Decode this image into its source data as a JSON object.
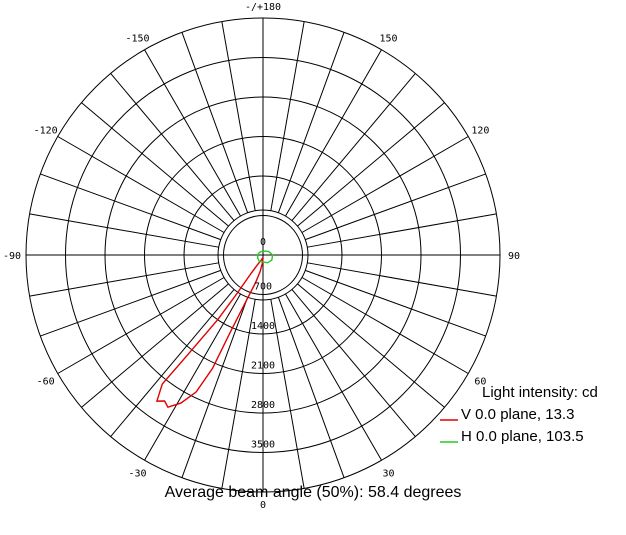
{
  "chart_data": {
    "type": "polar",
    "title": "",
    "angle_labels": [
      {
        "angle": 180,
        "label": "-/+180"
      },
      {
        "angle": -150,
        "label": "-150"
      },
      {
        "angle": 150,
        "label": "150"
      },
      {
        "angle": -120,
        "label": "-120"
      },
      {
        "angle": 120,
        "label": "120"
      },
      {
        "angle": -90,
        "label": "-90"
      },
      {
        "angle": 90,
        "label": "90"
      },
      {
        "angle": -60,
        "label": "-60"
      },
      {
        "angle": 60,
        "label": "60"
      },
      {
        "angle": -30,
        "label": "-30"
      },
      {
        "angle": 30,
        "label": "30"
      },
      {
        "angle": 0,
        "label": "0"
      }
    ],
    "radial_ticks": [
      {
        "value": 0,
        "label": "0"
      },
      {
        "value": 700,
        "label": "700"
      },
      {
        "value": 1400,
        "label": "1400"
      },
      {
        "value": 2100,
        "label": "2100"
      },
      {
        "value": 2800,
        "label": "2800"
      },
      {
        "value": 3500,
        "label": "3500"
      }
    ],
    "r_max": 4200,
    "angle_step": 10,
    "legend_title": "Light intensity: cd",
    "series": [
      {
        "name": "V 0.0 plane, 13.3",
        "color": "#e00000",
        "points": [
          [
            0,
            60
          ],
          [
            -5,
            150
          ],
          [
            -10,
            300
          ],
          [
            -15,
            500
          ],
          [
            -20,
            850
          ],
          [
            -23,
            1500
          ],
          [
            -24,
            2200
          ],
          [
            -26,
            2700
          ],
          [
            -29,
            3000
          ],
          [
            -32,
            3180
          ],
          [
            -34,
            3120
          ],
          [
            -36,
            3200
          ],
          [
            -38,
            2900
          ],
          [
            -37,
            2200
          ],
          [
            -35,
            1400
          ],
          [
            -34,
            800
          ],
          [
            -33,
            400
          ],
          [
            -30,
            200
          ],
          [
            -20,
            100
          ],
          [
            -10,
            60
          ],
          [
            0,
            60
          ]
        ]
      },
      {
        "name": "H 0.0 plane, 103.5",
        "color": "#22cc22",
        "points": [
          [
            -90,
            90
          ],
          [
            -60,
            110
          ],
          [
            -30,
            130
          ],
          [
            0,
            120
          ],
          [
            30,
            160
          ],
          [
            60,
            180
          ],
          [
            90,
            170
          ],
          [
            120,
            120
          ],
          [
            150,
            80
          ],
          [
            180,
            60
          ],
          [
            -150,
            70
          ],
          [
            -120,
            80
          ],
          [
            -90,
            90
          ]
        ]
      }
    ]
  },
  "footer": {
    "beam_angle": "Average beam angle (50%): 58.4 degrees"
  }
}
